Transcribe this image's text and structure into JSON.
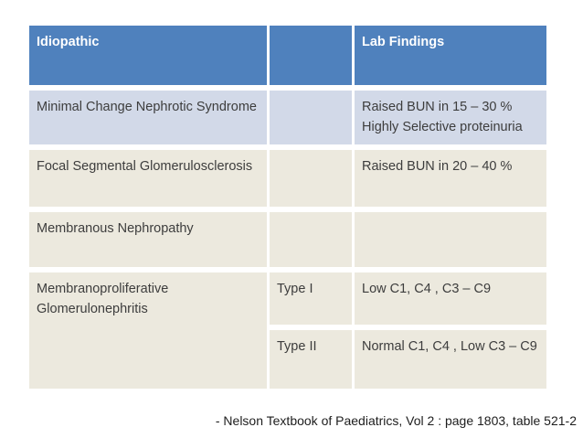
{
  "table": {
    "header": {
      "idiopathic": "Idiopathic",
      "type": "",
      "lab_findings": "Lab Findings"
    },
    "rows": [
      {
        "idiopathic": "Minimal Change Nephrotic Syndrome",
        "type": "",
        "lab": "Raised BUN in 15 – 30 %\nHighly Selective proteinuria"
      },
      {
        "idiopathic": "Focal Segmental Glomerulosclerosis",
        "type": "",
        "lab": "Raised BUN in 20 – 40 %"
      },
      {
        "idiopathic": "Membranous Nephropathy",
        "type": "",
        "lab": ""
      },
      {
        "idiopathic": "Membranoproliferative Glomerulonephritis",
        "type": "Type I",
        "lab": "Low C1, C4 , C3 – C9"
      },
      {
        "idiopathic": "",
        "type": "Type II",
        "lab": "Normal C1, C4 , Low C3 – C9"
      }
    ]
  },
  "footer": {
    "citation": "- Nelson Textbook of Paediatrics, Vol 2 : page 1803, table 521-2"
  },
  "colors": {
    "header_bg": "#4f81bd",
    "header_text": "#ffffff",
    "row1_bg": "#d2d9e8",
    "row_beige_bg": "#ece9de",
    "body_text": "#3d3d3d",
    "page_bg": "#ffffff"
  }
}
